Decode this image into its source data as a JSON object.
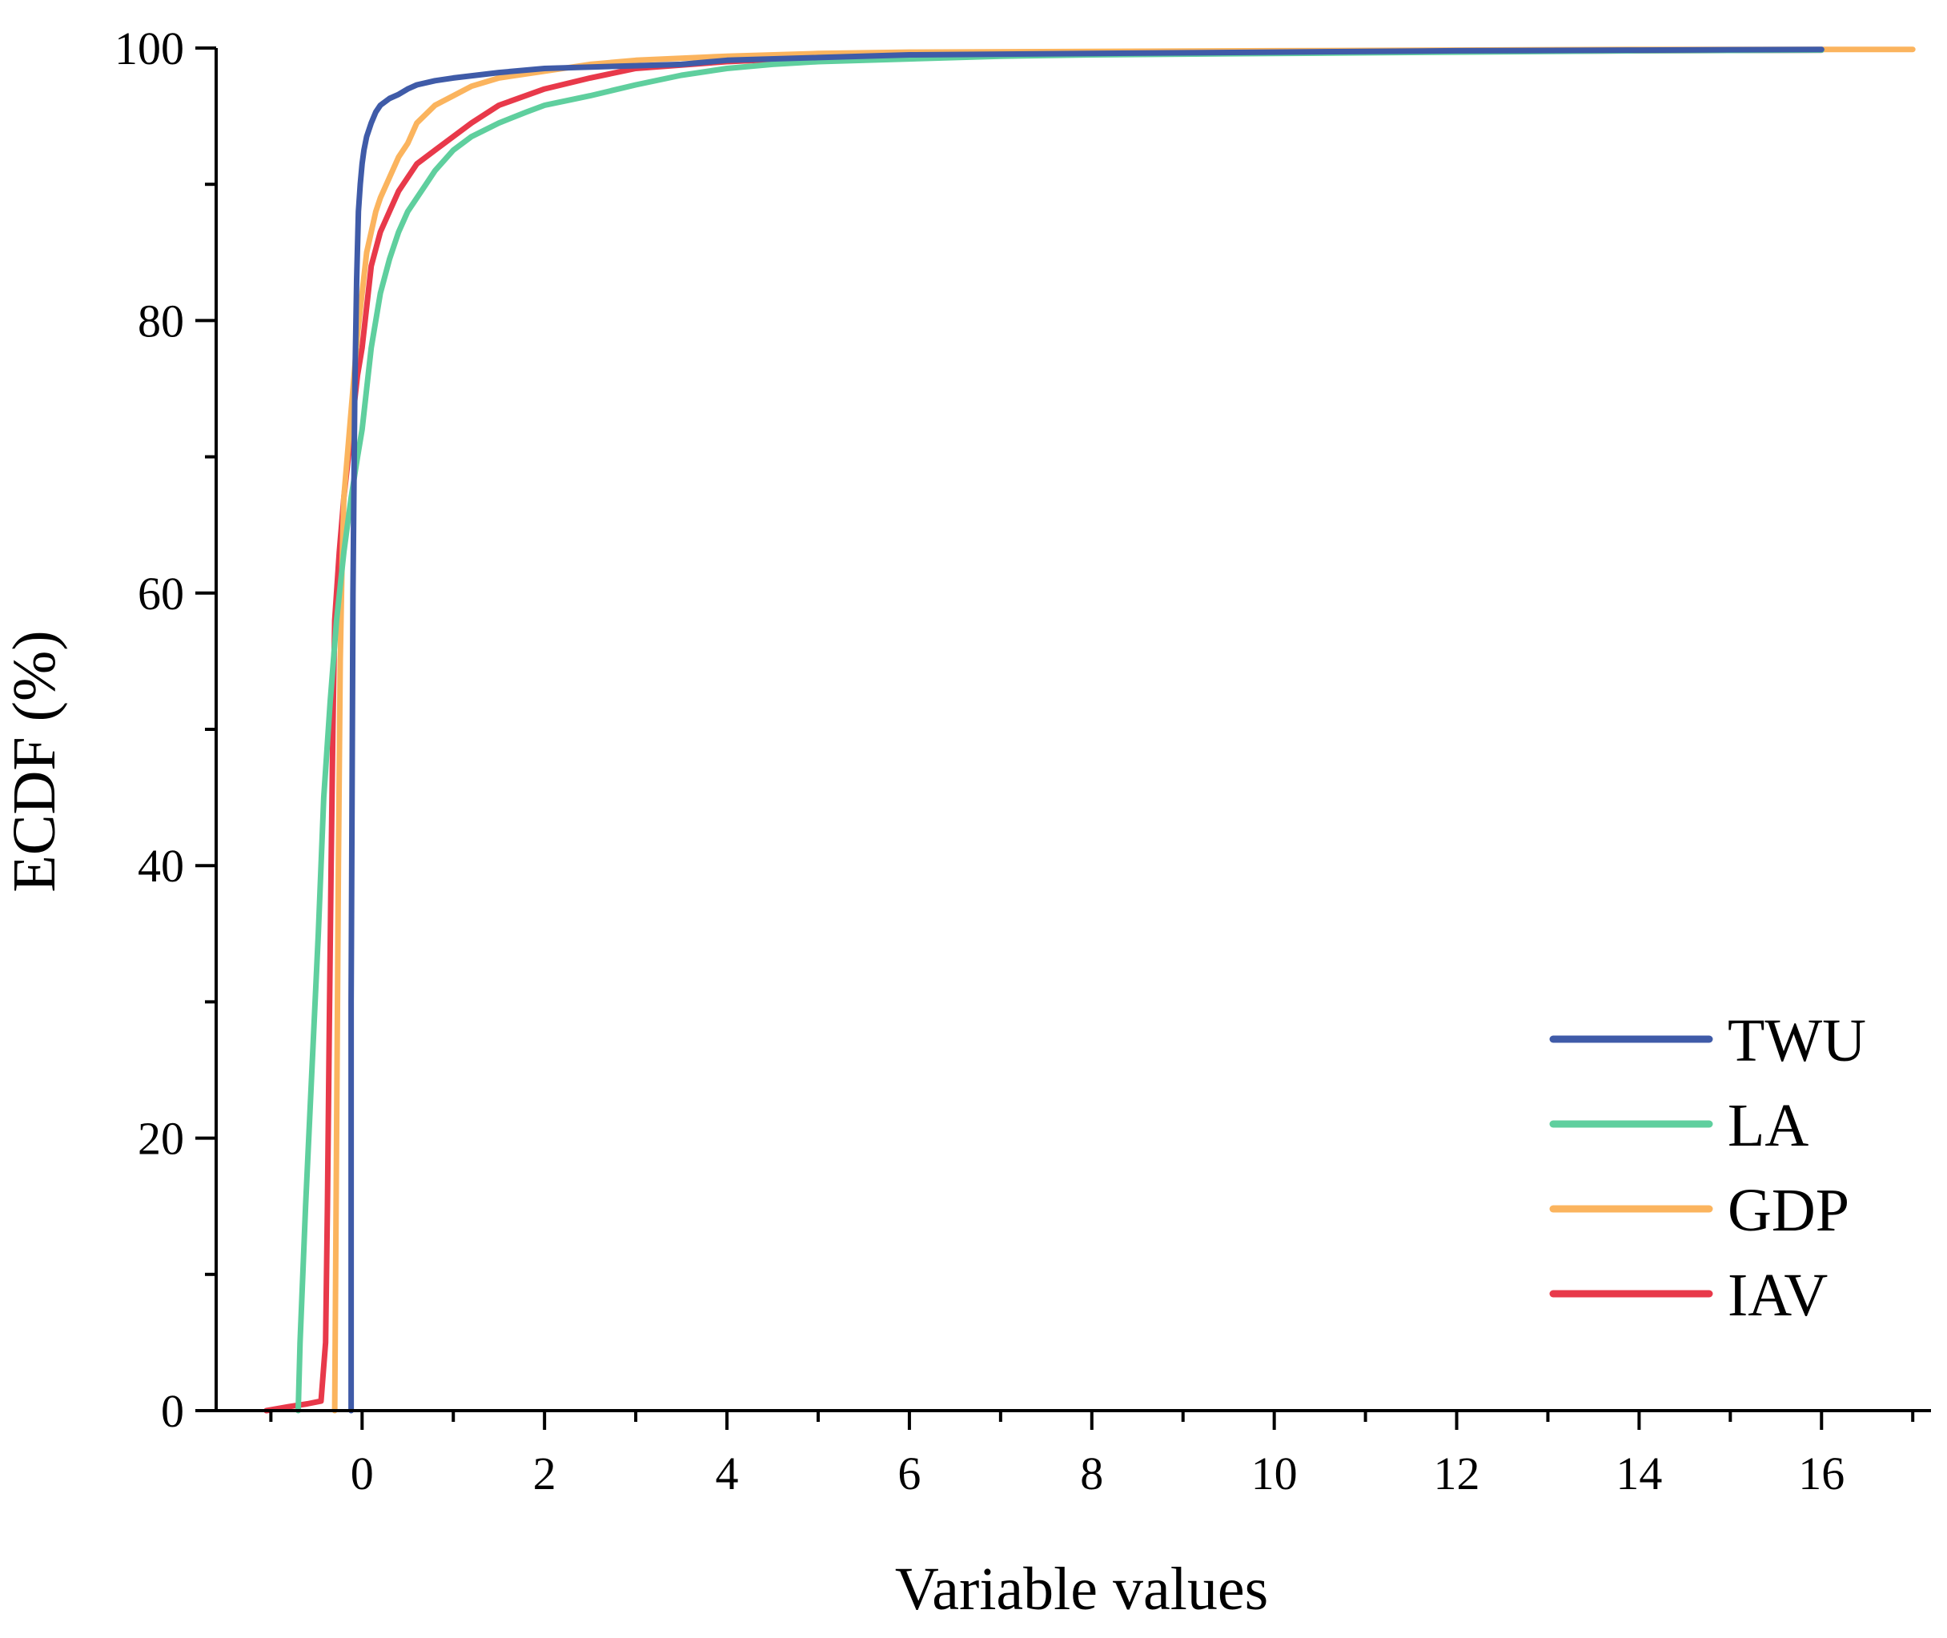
{
  "chart_data": {
    "type": "line",
    "title": "",
    "xlabel": "Variable values",
    "ylabel": "ECDF (%)",
    "xlim": [
      -1.6,
      17.2
    ],
    "ylim": [
      0,
      100
    ],
    "x_ticks": [
      0,
      2,
      4,
      6,
      8,
      10,
      12,
      14,
      16
    ],
    "x_minor_ticks": [
      -1,
      1,
      3,
      5,
      7,
      9,
      11,
      13,
      15,
      17
    ],
    "y_ticks": [
      0,
      20,
      40,
      60,
      80,
      100
    ],
    "y_minor_ticks": [
      10,
      30,
      50,
      70,
      90
    ],
    "x_tick_labels": [
      "0",
      "2",
      "4",
      "6",
      "8",
      "10",
      "12",
      "14",
      "16"
    ],
    "y_tick_labels": [
      "0",
      "20",
      "40",
      "60",
      "80",
      "100"
    ],
    "grid": false,
    "legend_position": "bottom-right",
    "series": [
      {
        "name": "TWU",
        "color": "#3f5ba8",
        "x": [
          -0.12,
          -0.12,
          -0.1,
          -0.08,
          -0.06,
          -0.04,
          -0.02,
          0,
          0.02,
          0.05,
          0.1,
          0.15,
          0.2,
          0.3,
          0.4,
          0.5,
          0.6,
          0.8,
          1.0,
          1.5,
          2.0,
          3.0,
          3.5,
          4.0,
          5.0,
          6.0,
          8.0,
          10.0,
          12.0,
          14.0,
          16.0
        ],
        "y": [
          0,
          30,
          60,
          75,
          83,
          88,
          90,
          91.5,
          92.5,
          93.5,
          94.5,
          95.3,
          95.8,
          96.3,
          96.6,
          97.0,
          97.3,
          97.6,
          97.8,
          98.2,
          98.5,
          98.7,
          98.8,
          99.1,
          99.3,
          99.5,
          99.6,
          99.7,
          99.8,
          99.85,
          99.9
        ]
      },
      {
        "name": "LA",
        "color": "#5fcf9e",
        "x": [
          -0.7,
          -0.68,
          -0.62,
          -0.55,
          -0.48,
          -0.42,
          -0.35,
          -0.28,
          -0.2,
          -0.12,
          -0.05,
          0,
          0.05,
          0.1,
          0.15,
          0.2,
          0.3,
          0.4,
          0.5,
          0.6,
          0.7,
          0.8,
          1.0,
          1.2,
          1.5,
          1.8,
          2.0,
          2.5,
          3.0,
          3.5,
          4.0,
          4.5,
          5.0,
          6.0,
          7.0,
          8.0,
          10.0,
          12.0,
          14.0,
          16.0
        ],
        "y": [
          0,
          5,
          15,
          25,
          35,
          45,
          52,
          58,
          63,
          67,
          70,
          72,
          75,
          78,
          80,
          82,
          84.5,
          86.5,
          88,
          89,
          90,
          91,
          92.5,
          93.5,
          94.5,
          95.3,
          95.8,
          96.5,
          97.3,
          98.0,
          98.5,
          98.8,
          99.0,
          99.2,
          99.4,
          99.5,
          99.6,
          99.7,
          99.8,
          99.85
        ]
      },
      {
        "name": "GDP",
        "color": "#fbb45e",
        "x": [
          -0.3,
          -0.28,
          -0.26,
          -0.24,
          -0.22,
          -0.2,
          -0.15,
          -0.1,
          -0.05,
          0,
          0.05,
          0.1,
          0.15,
          0.2,
          0.3,
          0.4,
          0.5,
          0.6,
          0.8,
          1.0,
          1.2,
          1.5,
          2.0,
          2.5,
          3.0,
          4.0,
          5.0,
          6.0,
          8.0,
          10.0,
          12.0,
          14.0,
          16.0,
          17.0
        ],
        "y": [
          0,
          20,
          40,
          55,
          62,
          67,
          71,
          75,
          79,
          82,
          85,
          86.5,
          88,
          89,
          90.5,
          92,
          93,
          94.5,
          95.8,
          96.5,
          97.2,
          97.8,
          98.3,
          98.8,
          99.1,
          99.4,
          99.6,
          99.7,
          99.75,
          99.8,
          99.85,
          99.9,
          99.9,
          99.9
        ]
      },
      {
        "name": "IAV",
        "color": "#e8394a",
        "x": [
          -1.05,
          -0.8,
          -0.6,
          -0.45,
          -0.4,
          -0.38,
          -0.36,
          -0.34,
          -0.32,
          -0.3,
          -0.25,
          -0.2,
          -0.15,
          -0.1,
          -0.05,
          0,
          0.05,
          0.1,
          0.2,
          0.3,
          0.4,
          0.5,
          0.6,
          0.8,
          1.0,
          1.2,
          1.5,
          2.0,
          2.5,
          3.0,
          4.0,
          5.0,
          6.0,
          8.0,
          10.0,
          12.0,
          14.0,
          16.0
        ],
        "y": [
          0,
          0.3,
          0.5,
          0.7,
          5,
          15,
          28,
          40,
          50,
          58,
          63,
          67,
          70,
          73,
          76,
          78,
          81,
          84,
          86.5,
          88,
          89.5,
          90.5,
          91.5,
          92.5,
          93.5,
          94.5,
          95.8,
          97.0,
          97.8,
          98.5,
          99.0,
          99.3,
          99.5,
          99.6,
          99.7,
          99.75,
          99.8,
          99.85
        ]
      }
    ]
  }
}
